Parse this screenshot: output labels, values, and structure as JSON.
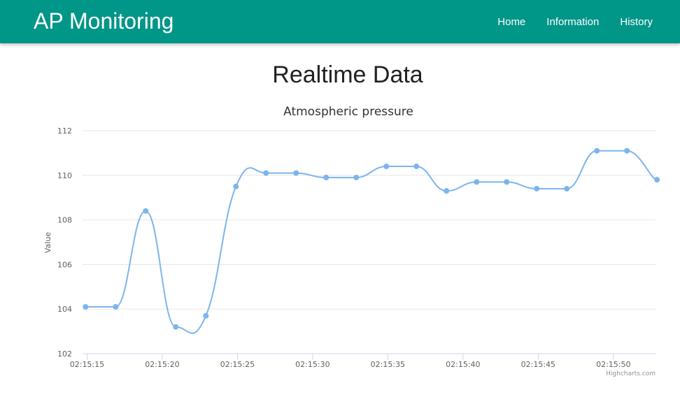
{
  "navbar": {
    "brand": "AP Monitoring",
    "links": [
      "Home",
      "Information",
      "History"
    ],
    "color": "#009688"
  },
  "page": {
    "title": "Realtime Data"
  },
  "chart_data": {
    "type": "line",
    "title": "Atmospheric pressure",
    "ylabel": "Value",
    "xlabel": "",
    "credits": "Highcharts.com",
    "ylim": [
      102,
      112
    ],
    "y_ticks": [
      102,
      104,
      106,
      108,
      110,
      112
    ],
    "x_tick_labels": [
      "02:15:15",
      "02:15:20",
      "02:15:25",
      "02:15:30",
      "02:15:35",
      "02:15:40",
      "02:15:45",
      "02:15:50"
    ],
    "x_tick_seconds": [
      15,
      20,
      25,
      30,
      35,
      40,
      45,
      50
    ],
    "xlim_seconds": [
      14.7,
      52.8
    ],
    "grid": true,
    "series": [
      {
        "color": "#7cb5ec",
        "x_seconds": [
          14.9,
          16.9,
          18.9,
          20.9,
          22.9,
          24.9,
          26.9,
          28.9,
          30.9,
          32.9,
          34.9,
          36.9,
          38.9,
          40.9,
          42.9,
          44.9,
          46.9,
          48.9,
          50.9,
          52.9
        ],
        "values": [
          104.1,
          104.1,
          108.4,
          103.2,
          103.7,
          109.5,
          110.1,
          110.1,
          109.9,
          109.9,
          110.4,
          110.4,
          109.3,
          109.7,
          109.7,
          109.4,
          109.4,
          111.1,
          111.1,
          109.8
        ]
      }
    ]
  }
}
